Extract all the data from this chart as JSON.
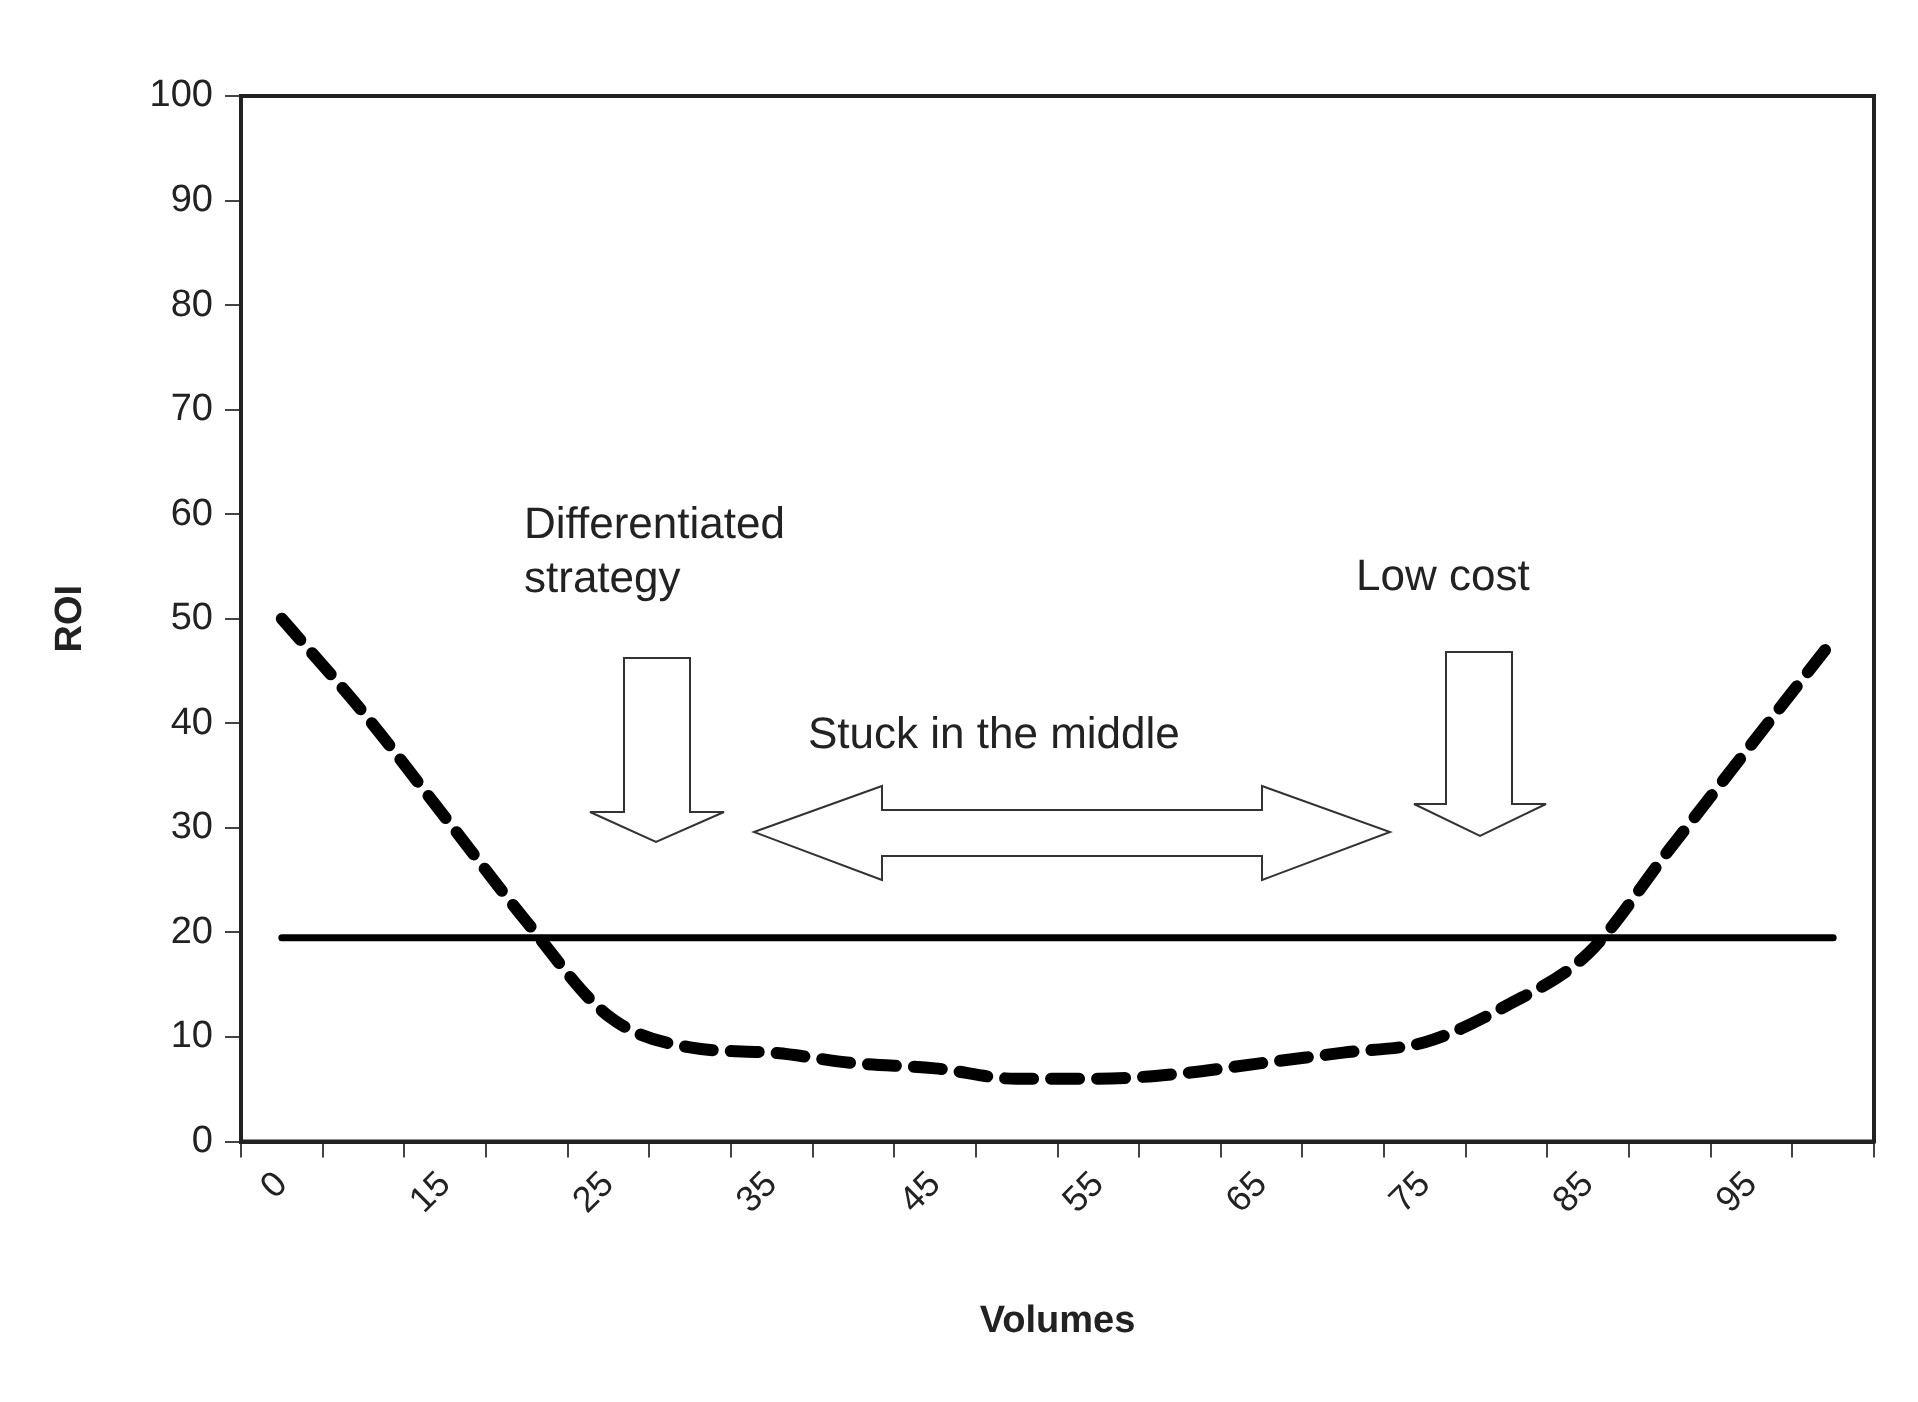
{
  "chart_data": {
    "type": "line",
    "xlabel": "Volumes",
    "ylabel": "ROI",
    "categories": [
      "0",
      null,
      "15",
      null,
      "25",
      null,
      "35",
      null,
      "45",
      null,
      "55",
      null,
      "65",
      null,
      "75",
      null,
      "85",
      null,
      "95",
      null
    ],
    "series": [
      {
        "color": "#000000",
        "line_style": "dashed",
        "values": [
          50,
          41,
          31,
          21,
          12,
          9,
          8.5,
          7.5,
          7,
          6,
          6,
          6.5,
          7.5,
          8.5,
          9.5,
          13,
          18,
          28,
          38,
          48
        ]
      },
      {
        "color": "#000000",
        "line_style": "solid",
        "values": [
          19.5,
          19.5,
          19.5,
          19.5,
          19.5,
          19.5,
          19.5,
          19.5,
          19.5,
          19.5,
          19.5,
          19.5,
          19.5,
          19.5,
          19.5,
          19.5,
          19.5,
          19.5,
          19.5,
          19.5
        ]
      }
    ],
    "ylim": [
      0,
      100
    ],
    "yticks": [
      0,
      10,
      20,
      30,
      40,
      50,
      60,
      70,
      80,
      90,
      100
    ],
    "grid": false,
    "legend": false,
    "marker": "none",
    "annotations": [
      "Differentiated strategy",
      "Stuck in the middle",
      "Low cost"
    ]
  }
}
